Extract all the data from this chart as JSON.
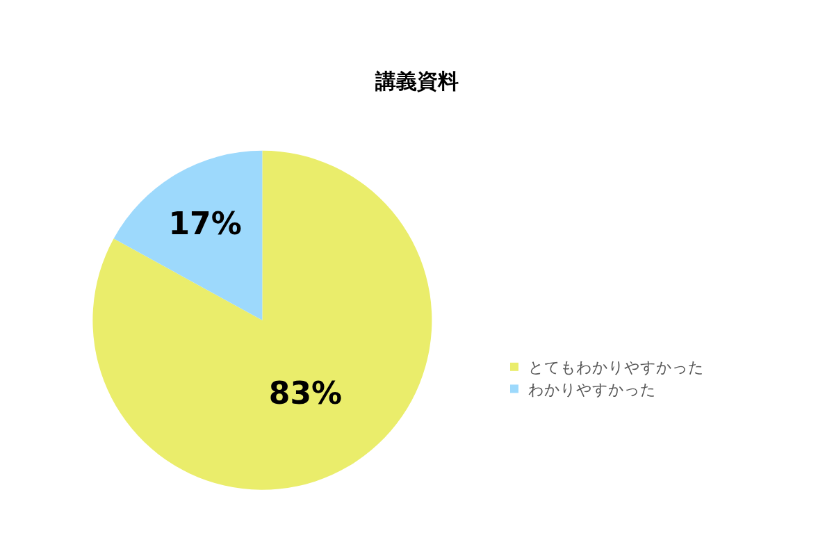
{
  "chart_data": {
    "type": "pie",
    "title": "講義資料",
    "categories": [
      "とてもわかりやすかった",
      "わかりやすかった"
    ],
    "values": [
      83,
      17
    ],
    "colors": [
      "#eaed6b",
      "#9dd9fc"
    ],
    "value_labels": [
      "83%",
      "17%"
    ],
    "legend": "right"
  }
}
